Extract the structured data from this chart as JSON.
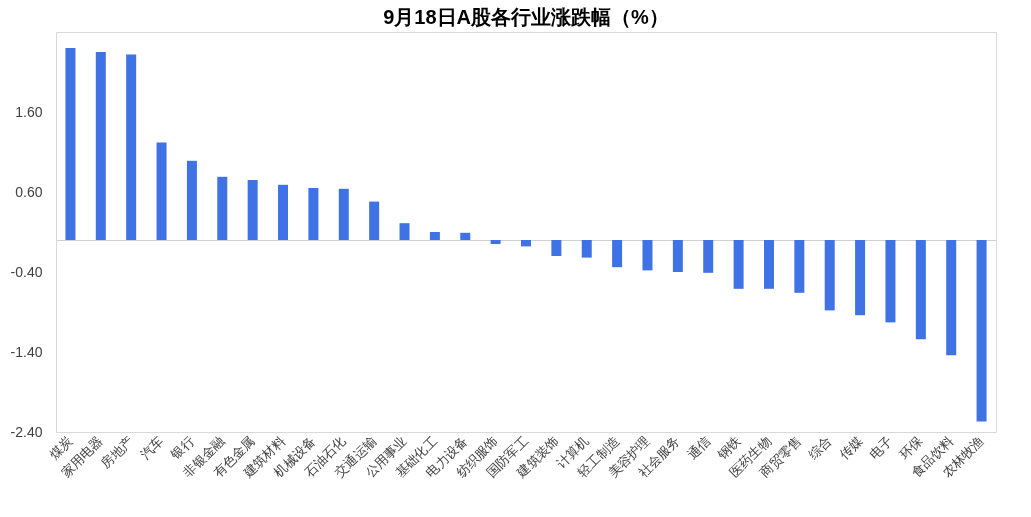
{
  "chart_data": {
    "type": "bar",
    "title": "9月18日A股各行业涨跌幅（%）",
    "categories": [
      "煤炭",
      "家用电器",
      "房地产",
      "汽车",
      "银行",
      "非银金融",
      "有色金属",
      "建筑材料",
      "机械设备",
      "石油石化",
      "交通运输",
      "公用事业",
      "基础化工",
      "电力设备",
      "纺织服饰",
      "国防军工",
      "建筑装饰",
      "计算机",
      "轻工制造",
      "美容护理",
      "社会服务",
      "通信",
      "钢铁",
      "医药生物",
      "商贸零售",
      "综合",
      "传媒",
      "电子",
      "环保",
      "食品饮料",
      "农林牧渔"
    ],
    "values": [
      2.4,
      2.35,
      2.32,
      1.22,
      0.99,
      0.79,
      0.75,
      0.69,
      0.65,
      0.64,
      0.48,
      0.21,
      0.1,
      0.09,
      -0.05,
      -0.08,
      -0.2,
      -0.22,
      -0.34,
      -0.38,
      -0.4,
      -0.41,
      -0.61,
      -0.61,
      -0.66,
      -0.88,
      -0.94,
      -1.03,
      -1.24,
      -1.44,
      -2.27
    ],
    "color": "#3f72e4",
    "ylim": [
      -2.4,
      2.6
    ],
    "yticks": [
      {
        "value": -2.4,
        "label": "-2.40"
      },
      {
        "value": -1.4,
        "label": "-1.40"
      },
      {
        "value": -0.4,
        "label": "-0.40"
      },
      {
        "value": 0.6,
        "label": "0.60"
      },
      {
        "value": 1.6,
        "label": "1.60"
      }
    ],
    "grid": false
  }
}
